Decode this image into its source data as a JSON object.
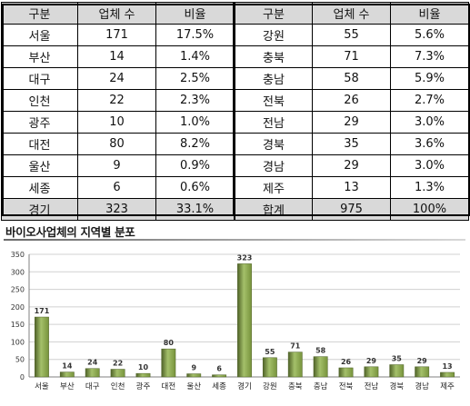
{
  "table": {
    "left": {
      "headers": [
        "구분",
        "업체 수",
        "비율"
      ],
      "rows": [
        [
          "서울",
          "171",
          "17.5%"
        ],
        [
          "부산",
          "14",
          "1.4%"
        ],
        [
          "대구",
          "24",
          "2.5%"
        ],
        [
          "인천",
          "22",
          "2.3%"
        ],
        [
          "광주",
          "10",
          "1.0%"
        ],
        [
          "대전",
          "80",
          "8.2%"
        ],
        [
          "울산",
          "9",
          "0.9%"
        ],
        [
          "세종",
          "6",
          "0.6%"
        ]
      ],
      "total": [
        "경기",
        "323",
        "33.1%"
      ]
    },
    "right": {
      "headers": [
        "구분",
        "업체 수",
        "비율"
      ],
      "rows": [
        [
          "강원",
          "55",
          "5.6%"
        ],
        [
          "충북",
          "71",
          "7.3%"
        ],
        [
          "충남",
          "58",
          "5.9%"
        ],
        [
          "전북",
          "26",
          "2.7%"
        ],
        [
          "전남",
          "29",
          "3.0%"
        ],
        [
          "경북",
          "35",
          "3.6%"
        ],
        [
          "경남",
          "29",
          "3.0%"
        ],
        [
          "제주",
          "13",
          "1.3%"
        ]
      ],
      "total": [
        "합계",
        "975",
        "100%"
      ]
    }
  },
  "chart_data": {
    "type": "bar",
    "title": "바이오사업체의 지역별 분포",
    "categories": [
      "서울",
      "부산",
      "대구",
      "인천",
      "광주",
      "대전",
      "울산",
      "세종",
      "경기",
      "강원",
      "충북",
      "충남",
      "전북",
      "전남",
      "경북",
      "경남",
      "제주"
    ],
    "values": [
      171,
      14,
      24,
      22,
      10,
      80,
      9,
      6,
      323,
      55,
      71,
      58,
      26,
      29,
      35,
      29,
      13
    ],
    "ylim": [
      0,
      350
    ],
    "yticks": [
      0,
      50,
      100,
      150,
      200,
      250,
      300,
      350
    ],
    "grid": true,
    "legend": "none",
    "xlabel": "",
    "ylabel": "",
    "colors": {
      "bar": "#77933c",
      "bar_light": "#a4c06a",
      "bar_dark": "#4f6228",
      "grid": "#d0d0d0",
      "axis": "#808080"
    }
  }
}
